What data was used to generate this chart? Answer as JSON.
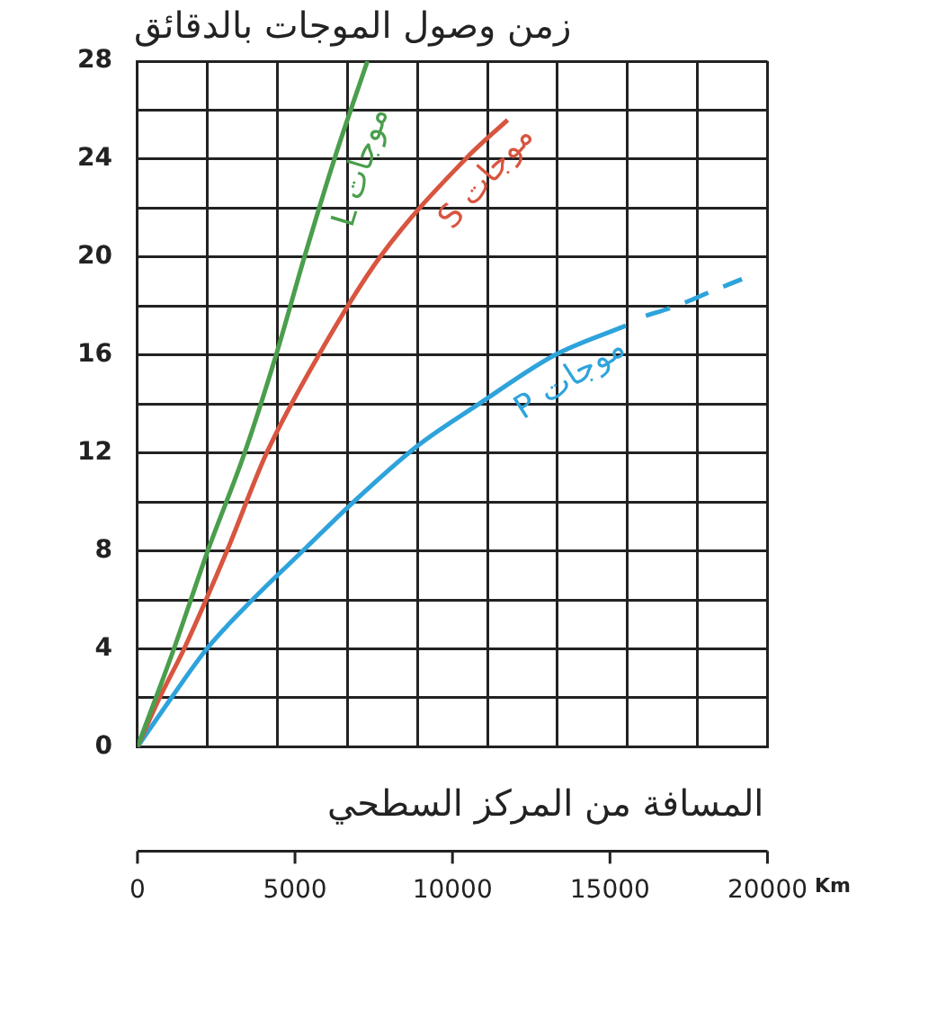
{
  "chart_data": {
    "type": "line",
    "ylabel": "زمن وصول الموجات بالدقائق",
    "xlabel": "المسافة من المركز السطحي",
    "annotations": [
      "Km"
    ],
    "xlim": [
      0,
      20000
    ],
    "ylim": [
      0,
      28
    ],
    "xticks": [
      0,
      {
        "value": 2222,
        "label": null
      },
      {
        "value": 4444,
        "label": null
      },
      5000,
      {
        "value": 6667,
        "label": null
      },
      {
        "value": 8889,
        "label": null
      },
      10000,
      {
        "value": 11111,
        "label": null
      },
      {
        "value": 13333,
        "label": null
      },
      15000,
      {
        "value": 15556,
        "label": null
      },
      {
        "value": 17778,
        "label": null
      },
      20000
    ],
    "yticks": [
      0,
      {
        "value": 2,
        "label": null
      },
      4,
      {
        "value": 6,
        "label": null
      },
      8,
      {
        "value": 10,
        "label": null
      },
      12,
      {
        "value": 14,
        "label": null
      },
      16,
      {
        "value": 18,
        "label": null
      },
      20,
      {
        "value": 22,
        "label": null
      },
      24,
      {
        "value": 26,
        "label": null
      },
      28
    ],
    "grid": true,
    "legend": false,
    "marker": "none",
    "line_style": "solid",
    "series": [
      {
        "name": "موجات L",
        "color": "#4a9e4c",
        "x": [
          0,
          1156,
          2230,
          3400,
          4400,
          5300,
          6250,
          7300
        ],
        "values": [
          0,
          4,
          8,
          12,
          16,
          20,
          24,
          28
        ]
      },
      {
        "name": "موجات S",
        "color": "#d8553f",
        "x": [
          0,
          700,
          1480,
          2840,
          4100,
          5755,
          7700,
          10410,
          11750
        ],
        "values": [
          0,
          2,
          4,
          8,
          12,
          16,
          20,
          24,
          25.6
        ]
      },
      {
        "name": "موجات P",
        "color": "#2ea3db",
        "x": [
          0,
          1076,
          2200,
          3645,
          5250,
          6860,
          8900,
          10840,
          13250,
          15500
        ],
        "values": [
          0,
          2,
          4,
          6,
          8,
          10,
          12.3,
          14,
          16,
          17.2
        ]
      },
      {
        "color": "#2ea3db",
        "line_style": "dashed",
        "x": [
          16140,
          17100,
          18230,
          19190
        ],
        "values": [
          17.6,
          18,
          18.6,
          19.1
        ]
      }
    ]
  }
}
